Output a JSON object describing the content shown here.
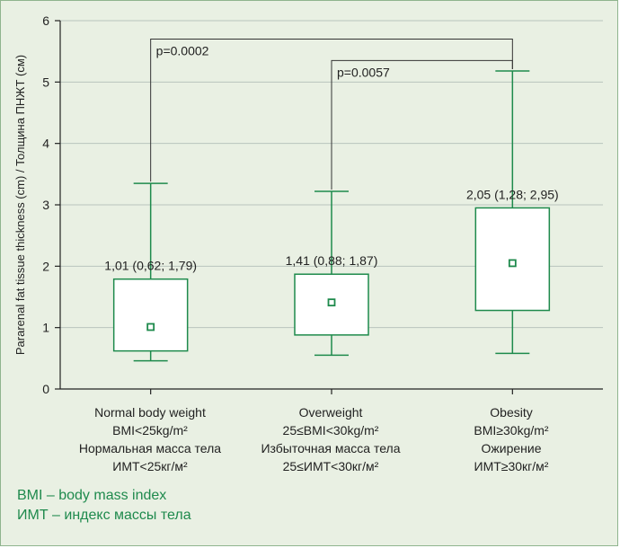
{
  "chart_data": {
    "type": "box",
    "ylabel": "Pararenal fat tissue thickness (cm)  /  Толщина ПНЖТ (см)",
    "ylim": [
      0,
      6
    ],
    "yticks": [
      "0",
      "1",
      "2",
      "3",
      "4",
      "5",
      "6"
    ],
    "grid": true,
    "categories": [
      {
        "lines": [
          "Normal body weight",
          "BMI<25kg/m²",
          "Нормальная масса тела",
          "ИМТ<25кг/м²"
        ]
      },
      {
        "lines": [
          "Overweight",
          "25≤BMI<30kg/m²",
          "Избыточная  масса тела",
          "25≤ИМТ<30кг/м²"
        ]
      },
      {
        "lines": [
          "Obesity",
          "BMI≥30kg/m²",
          "Ожирение",
          "ИМТ≥30кг/м²"
        ]
      }
    ],
    "boxes": [
      {
        "median": 1.01,
        "q1": 0.62,
        "q3": 1.79,
        "min": 0.46,
        "max": 3.35,
        "label": "1,01 (0,62; 1,79)"
      },
      {
        "median": 1.41,
        "q1": 0.88,
        "q3": 1.87,
        "min": 0.55,
        "max": 3.22,
        "label": "1,41 (0,88; 1,87)"
      },
      {
        "median": 2.05,
        "q1": 1.28,
        "q3": 2.95,
        "min": 0.58,
        "max": 5.18,
        "label": "2,05 (1,28; 2,95)"
      }
    ],
    "comparisons": [
      {
        "from": 0,
        "to": 2,
        "label": "p=0.0002",
        "level": 5.7
      },
      {
        "from": 1,
        "to": 2,
        "label": "p=0.0057",
        "level": 5.35
      }
    ]
  },
  "footnotes": [
    "BMI – body mass index",
    "ИМТ – индекс массы тела"
  ],
  "colors": {
    "background": "#e9f0e3",
    "border": "#8fb48e",
    "box_stroke": "#1e8a4c",
    "grid": "#b9c5be",
    "axis": "#222222",
    "bracket": "#333333",
    "footnote_text": "#1f8a4d"
  }
}
